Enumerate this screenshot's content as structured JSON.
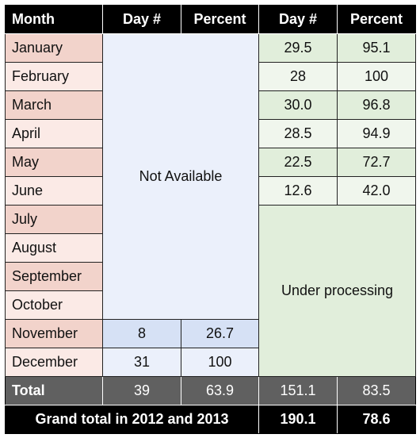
{
  "header": {
    "month": "Month",
    "day_2012": "Day #",
    "percent_2012": "Percent",
    "day_2013": "Day #",
    "percent_2013": "Percent"
  },
  "rows": [
    {
      "month": "January",
      "day_2013": "29.5",
      "percent_2013": "95.1"
    },
    {
      "month": "February",
      "day_2013": "28",
      "percent_2013": "100"
    },
    {
      "month": "March",
      "day_2013": "30.0",
      "percent_2013": "96.8"
    },
    {
      "month": "April",
      "day_2013": "28.5",
      "percent_2013": "94.9"
    },
    {
      "month": "May",
      "day_2013": "22.5",
      "percent_2013": "72.7"
    },
    {
      "month": "June",
      "day_2013": "12.6",
      "percent_2013": "42.0"
    },
    {
      "month": "July"
    },
    {
      "month": "August"
    },
    {
      "month": "September"
    },
    {
      "month": "October"
    },
    {
      "month": "November",
      "day_2012": "8",
      "percent_2012": "26.7"
    },
    {
      "month": "December",
      "day_2012": "31",
      "percent_2012": "100"
    }
  ],
  "not_available": "Not Available",
  "under_processing": "Under processing",
  "total": {
    "label": "Total",
    "day_2012": "39",
    "percent_2012": "63.9",
    "day_2013": "151.1",
    "percent_2013": "83.5"
  },
  "grand_total": {
    "label": "Grand total in 2012 and 2013",
    "day": "190.1",
    "percent": "78.6"
  }
}
